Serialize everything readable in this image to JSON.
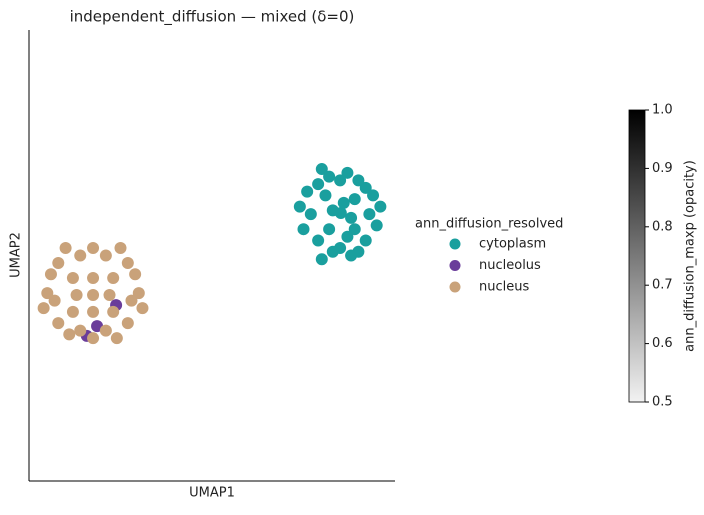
{
  "chart_data": {
    "type": "scatter",
    "title": "independent_diffusion — mixed (δ=0)",
    "x_label": "UMAP1",
    "y_label": "UMAP2",
    "xlim": [
      0,
      10
    ],
    "ylim": [
      0,
      12
    ],
    "legend_title": "ann_diffusion_resolved",
    "legend": "right",
    "series": [
      {
        "name": "cytoplasm",
        "color": "#1a9f9e",
        "x": [
          8.52,
          8.9,
          8.1,
          8.2,
          8.9,
          9.3,
          7.7,
          8.5,
          8.5,
          9.2,
          7.9,
          7.9,
          9.2,
          9.6,
          7.4,
          8.7,
          8.2,
          8.8,
          8.3,
          9.5,
          7.5,
          9.0,
          8.0,
          8.6,
          8.3,
          8.8,
          9.4,
          7.6,
          8.0,
          9.0,
          8.7
        ],
        "y": [
          7.13,
          7.5,
          7.6,
          6.7,
          6.7,
          7.1,
          7.1,
          8.0,
          6.2,
          7.8,
          7.9,
          6.4,
          6.4,
          7.3,
          7.3,
          8.2,
          8.1,
          6.0,
          6.1,
          6.8,
          6.7,
          8.0,
          8.3,
          7.4,
          7.2,
          7.0,
          7.6,
          7.7,
          5.9,
          6.1,
          6.5
        ]
      },
      {
        "name": "nucleolus",
        "color": "#6a3d9a",
        "x": [
          1.86,
          1.58,
          2.38
        ],
        "y": [
          4.12,
          3.86,
          4.68
        ]
      },
      {
        "name": "nucleus",
        "color": "#c9a27a",
        "x": [
          1.75,
          1.2,
          2.3,
          1.2,
          2.3,
          0.5,
          3.0,
          1.75,
          1.75,
          0.8,
          2.7,
          0.8,
          2.7,
          1.4,
          2.1,
          1.4,
          2.1,
          0.4,
          3.1,
          1.0,
          2.5,
          1.75,
          1.75,
          1.3,
          2.2,
          0.6,
          2.9,
          1.1,
          2.4,
          2.8,
          0.7
        ],
        "y": [
          4.95,
          5.4,
          5.4,
          4.5,
          4.5,
          5.0,
          5.0,
          6.2,
          3.8,
          5.8,
          5.8,
          4.2,
          4.2,
          6.0,
          6.0,
          4.0,
          4.0,
          4.6,
          4.6,
          6.2,
          6.2,
          5.4,
          4.5,
          4.95,
          4.95,
          5.5,
          5.5,
          3.9,
          3.8,
          4.8,
          4.8
        ]
      }
    ],
    "colorbar": {
      "label": "ann_diffusion_maxp (opacity)",
      "lim": [
        0.5,
        1
      ],
      "ticks": [
        0.5,
        0.6,
        0.7,
        0.8,
        0.9,
        {
          "value": 1,
          "label": "1.0"
        }
      ]
    }
  }
}
